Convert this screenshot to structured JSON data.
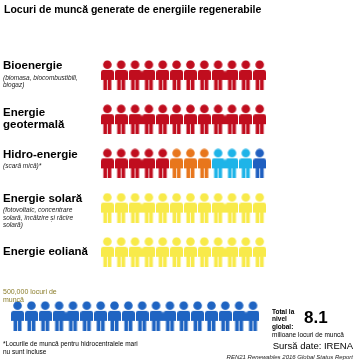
{
  "chart_data": {
    "type": "pictogram",
    "title": "Locuri de muncă generate de energiile regenerabile",
    "grid": false,
    "tick_labels": false,
    "rows": [
      {
        "label": "Bioenergie",
        "note": "(biomasa, biocombustibili, biogaz)",
        "icons": [
          {
            "color": "#c00d1e",
            "count": 12
          }
        ]
      },
      {
        "label": "Energie geotermală",
        "icons": [
          {
            "color": "#c00d1e",
            "count": 12
          }
        ]
      },
      {
        "label": "Hidro-energie",
        "note": "(scară mică)*",
        "icons": [
          {
            "color": "#c00d1e",
            "count": 5
          },
          {
            "color": "#e8761c",
            "count": 3
          },
          {
            "color": "#1eb4e8",
            "count": 3
          },
          {
            "color": "#1f5fc0",
            "count": 1
          }
        ]
      },
      {
        "label": "Energie solară",
        "note": "(fotovoltaic, concentrare solară, încălzire și răcire solară)",
        "icons": [
          {
            "color": "#f8ea4a",
            "count": 12
          }
        ]
      },
      {
        "label": "Energie eoliană",
        "icons": [
          {
            "color": "#f8ea4a",
            "count": 12
          }
        ]
      }
    ],
    "scale_note": {
      "label": "500,000 locuri de muncă",
      "color": "#8b7d2b"
    },
    "total": {
      "label": "Total la nivel global:",
      "value": 8.1,
      "unit": "milioane locuri de muncă",
      "icons": [
        {
          "color": "#1f64c2",
          "count": 18
        }
      ]
    },
    "footnote": "*Locurile de muncă pentru hidrocentralele mari nu sunt incluse",
    "source": "Sursă date: IRENA",
    "source_detail": "REN21 Renewables 2016 Global Status Report"
  }
}
